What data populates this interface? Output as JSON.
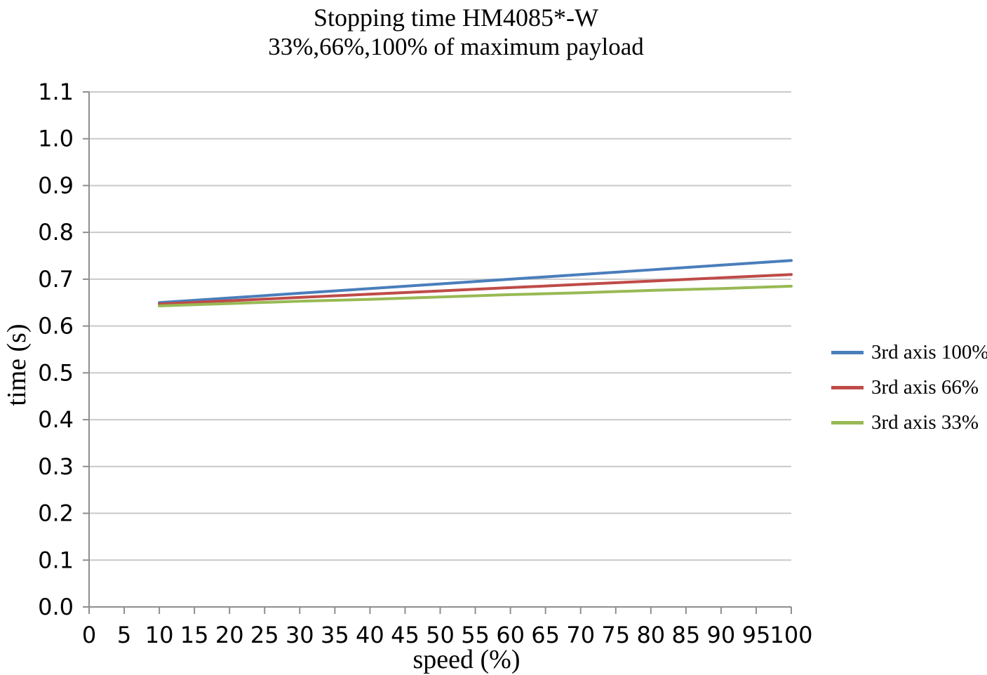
{
  "title": {
    "line1": "Stopping time HM4085*-W",
    "line2": "33%,66%,100% of maximum payload"
  },
  "y_axis": {
    "label": "time (s)"
  },
  "x_axis": {
    "label": "speed (%)"
  },
  "legend": {
    "position": "right",
    "items": [
      {
        "label": "3rd axis 100%",
        "color": "#4A7EBB"
      },
      {
        "label": "3rd axis 66%",
        "color": "#BE4B48"
      },
      {
        "label": "3rd axis 33%",
        "color": "#98B954"
      }
    ]
  },
  "colors": {
    "gridline": "#C9C9C9",
    "axis": "#8E8E8E",
    "text": "#000000"
  },
  "chart_data": {
    "type": "line",
    "title": "Stopping time HM4085*-W 33%,66%,100% of maximum payload",
    "xlabel": "speed (%)",
    "ylabel": "time (s)",
    "x": [
      10,
      20,
      30,
      40,
      50,
      60,
      70,
      80,
      90,
      100
    ],
    "series": [
      {
        "name": "3rd axis 100%",
        "color": "#4A7EBB",
        "values": [
          0.65,
          0.66,
          0.67,
          0.68,
          0.69,
          0.7,
          0.71,
          0.72,
          0.73,
          0.74
        ]
      },
      {
        "name": "3rd axis 66%",
        "color": "#BE4B48",
        "values": [
          0.647,
          0.654,
          0.661,
          0.668,
          0.675,
          0.682,
          0.689,
          0.696,
          0.703,
          0.71
        ]
      },
      {
        "name": "3rd axis 33%",
        "color": "#98B954",
        "values": [
          0.643,
          0.648,
          0.653,
          0.657,
          0.662,
          0.667,
          0.671,
          0.676,
          0.68,
          0.685
        ]
      }
    ],
    "xlim": [
      0,
      100
    ],
    "ylim": [
      0.0,
      1.1
    ],
    "xticks": [
      0,
      5,
      10,
      15,
      20,
      25,
      30,
      35,
      40,
      45,
      50,
      55,
      60,
      65,
      70,
      75,
      80,
      85,
      90,
      95,
      100
    ],
    "yticks": [
      0.0,
      0.1,
      0.2,
      0.3,
      0.4,
      0.5,
      0.6,
      0.7,
      0.8,
      0.9,
      1.0,
      1.1
    ],
    "grid": "horizontal-only",
    "legend_position": "right",
    "line_width": 4
  }
}
